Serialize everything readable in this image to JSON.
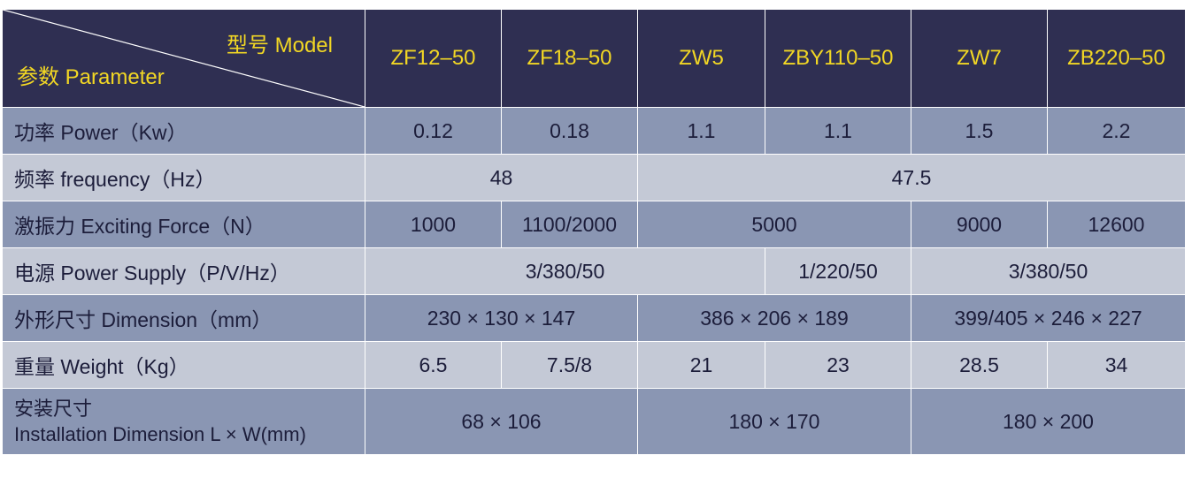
{
  "header": {
    "model_label": "型号 Model",
    "param_label": "参数 Parameter",
    "models": [
      "ZF12–50",
      "ZF18–50",
      "ZW5",
      "ZBY110–50",
      "ZW7",
      "ZB220–50"
    ]
  },
  "rows": {
    "power": {
      "label": "功率 Power（Kw）",
      "values": [
        "0.12",
        "0.18",
        "1.1",
        "1.1",
        "1.5",
        "2.2"
      ]
    },
    "frequency": {
      "label": "频率 frequency（Hz）",
      "values": [
        "48",
        "47.5"
      ]
    },
    "force": {
      "label": "激振力 Exciting Force（N）",
      "values": [
        "1000",
        "1100/2000",
        "5000",
        "9000",
        "12600"
      ]
    },
    "supply": {
      "label": "电源 Power Supply（P/V/Hz）",
      "values": [
        "3/380/50",
        "1/220/50",
        "3/380/50"
      ]
    },
    "dimension": {
      "label": "外形尺寸 Dimension（mm）",
      "values": [
        "230 × 130 × 147",
        "386 × 206 × 189",
        "399/405 × 246 × 227"
      ]
    },
    "weight": {
      "label": "重量 Weight（Kg）",
      "values": [
        "6.5",
        "7.5/8",
        "21",
        "23",
        "28.5",
        "34"
      ]
    },
    "install": {
      "label_cn": "安装尺寸",
      "label_en": "Installation Dimension L × W(mm)",
      "values": [
        "68 × 106",
        "180 × 170",
        "180 × 200"
      ]
    }
  },
  "colors": {
    "header_bg": "#2f2f52",
    "header_text": "#f2d724",
    "row_dark": "#8a96b3",
    "row_light": "#c4c9d6",
    "body_text": "#1c1d3a"
  }
}
